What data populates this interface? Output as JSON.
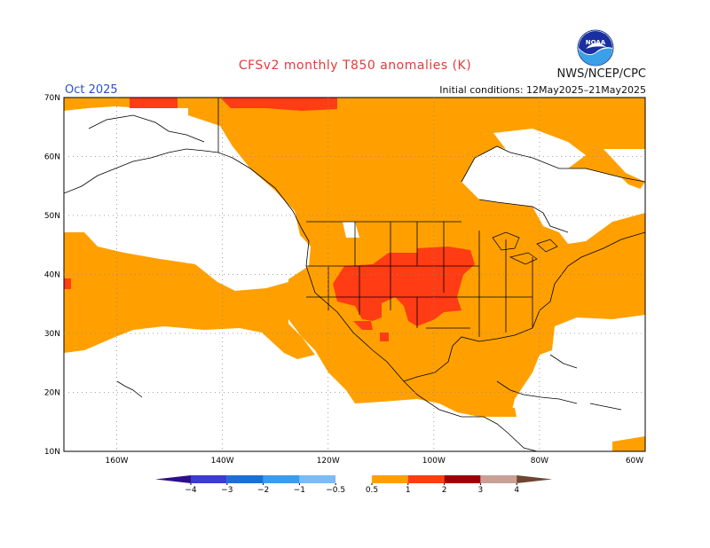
{
  "header": {
    "title": "CFSv2 monthly T850 anomalies (K)",
    "agency": "NWS/NCEP/CPC",
    "logo_text": "NOAA",
    "month": "Oct 2025",
    "initial_conditions": "Initial conditions: 12May2025–21May2025"
  },
  "map": {
    "lat_labels": [
      "70N",
      "60N",
      "50N",
      "40N",
      "30N",
      "20N",
      "10N"
    ],
    "lon_labels": [
      "160W",
      "140W",
      "120W",
      "100W",
      "80W",
      "60W"
    ],
    "extent": {
      "lon_min": -170,
      "lon_max": -60,
      "lat_min": 10,
      "lat_max": 70
    }
  },
  "legend": {
    "labels": [
      "−4",
      "−3",
      "−2",
      "−1",
      "−0.5",
      "0.5",
      "1",
      "2",
      "3",
      "4"
    ],
    "colors": {
      "lt_-4": "#2d0f8a",
      "-4_-3": "#3c3ccf",
      "-3_-2": "#1f6fd1",
      "-2_-1": "#3d9be8",
      "-1_-0.5": "#7bbcf5",
      "-0.5_0.5": "#ffffff",
      "0.5_1": "#ffa000",
      "1_2": "#ff3c14",
      "2_3": "#a00000",
      "3_4": "#c8a096",
      "gt_4": "#6e4632"
    }
  }
}
